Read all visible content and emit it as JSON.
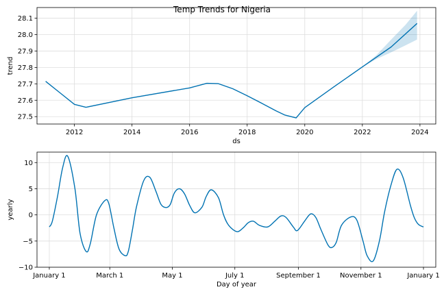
{
  "title": "Temp Trends for Nigeria",
  "colors": {
    "line": "#0072B2",
    "band": "#0072B2",
    "grid": "#dddddd"
  },
  "chart_data": [
    {
      "type": "line",
      "xlabel": "ds",
      "ylabel": "trend",
      "xlim": [
        2010.7,
        2024.55
      ],
      "ylim": [
        27.455,
        28.165
      ],
      "xticks": [
        2012,
        2014,
        2016,
        2018,
        2020,
        2022,
        2024
      ],
      "xtick_labels": [
        "2012",
        "2014",
        "2016",
        "2018",
        "2020",
        "2022",
        "2024"
      ],
      "yticks": [
        27.5,
        27.6,
        27.7,
        27.8,
        27.9,
        28.0,
        28.1
      ],
      "ytick_labels": [
        "27.5",
        "27.6",
        "27.7",
        "27.8",
        "27.9",
        "28.0",
        "28.1"
      ],
      "grid": true,
      "series": [
        {
          "x": [
            2011.0,
            2011.5,
            2012.0,
            2012.4,
            2014.0,
            2016.0,
            2016.6,
            2017.0,
            2017.5,
            2018.0,
            2018.5,
            2019.0,
            2019.3,
            2019.7,
            2020.0,
            2021.0,
            2022.0,
            2023.0,
            2023.9
          ],
          "values": [
            27.715,
            27.645,
            27.575,
            27.557,
            27.615,
            27.675,
            27.703,
            27.701,
            27.67,
            27.627,
            27.582,
            27.535,
            27.51,
            27.492,
            27.555,
            27.68,
            27.803,
            27.925,
            28.068
          ]
        }
      ],
      "uncertainty_band": {
        "x": [
          2022.0,
          2022.5,
          2023.0,
          2023.5,
          2023.9
        ],
        "lower": [
          27.803,
          27.852,
          27.892,
          27.935,
          27.97
        ],
        "upper": [
          27.803,
          27.877,
          27.97,
          28.06,
          28.145
        ]
      }
    },
    {
      "type": "line",
      "xlabel": "Day of year",
      "ylabel": "yearly",
      "xlim": [
        -12,
        377
      ],
      "ylim": [
        -10,
        12
      ],
      "xticks": [
        0,
        59,
        120,
        181,
        243,
        304,
        365
      ],
      "xtick_labels": [
        "January 1",
        "March 1",
        "May 1",
        "July 1",
        "September 1",
        "November 1",
        "January 1"
      ],
      "yticks": [
        -10,
        -5,
        0,
        5,
        10
      ],
      "ytick_labels": [
        "−10",
        "−5",
        "0",
        "5",
        "10"
      ],
      "grid": true,
      "series": [
        {
          "x": [
            0,
            3,
            8,
            13,
            18,
            25,
            30,
            36,
            40,
            46,
            54,
            58,
            63,
            68,
            74,
            77,
            81,
            85,
            92,
            98,
            104,
            109,
            114,
            118,
            122,
            127,
            132,
            137,
            142,
            149,
            153,
            158,
            165,
            170,
            175,
            183,
            189,
            194,
            199,
            205,
            213,
            220,
            226,
            231,
            238,
            242,
            249,
            255,
            260,
            265,
            272,
            276,
            280,
            285,
            294,
            300,
            306,
            310,
            316,
            322,
            327,
            333,
            339,
            345,
            352,
            356,
            360,
            365
          ],
          "values": [
            -2.3,
            -1.2,
            3.5,
            9.0,
            11.2,
            5.0,
            -3.5,
            -7.0,
            -5.5,
            0.0,
            2.7,
            2.2,
            -2.5,
            -6.5,
            -7.8,
            -7.0,
            -3.0,
            1.5,
            6.5,
            7.2,
            4.5,
            2.0,
            1.4,
            2.0,
            4.2,
            5.0,
            4.0,
            1.8,
            0.4,
            1.5,
            3.5,
            4.8,
            3.3,
            0.0,
            -2.0,
            -3.2,
            -2.5,
            -1.5,
            -1.2,
            -2.0,
            -2.3,
            -1.2,
            -0.2,
            -0.5,
            -2.3,
            -3.0,
            -1.2,
            0.2,
            -0.5,
            -2.8,
            -5.8,
            -6.2,
            -5.2,
            -2.0,
            -0.4,
            -1.0,
            -5.0,
            -7.8,
            -8.8,
            -5.0,
            0.5,
            5.5,
            8.7,
            7.2,
            2.0,
            -0.5,
            -1.8,
            -2.3
          ]
        }
      ]
    }
  ]
}
